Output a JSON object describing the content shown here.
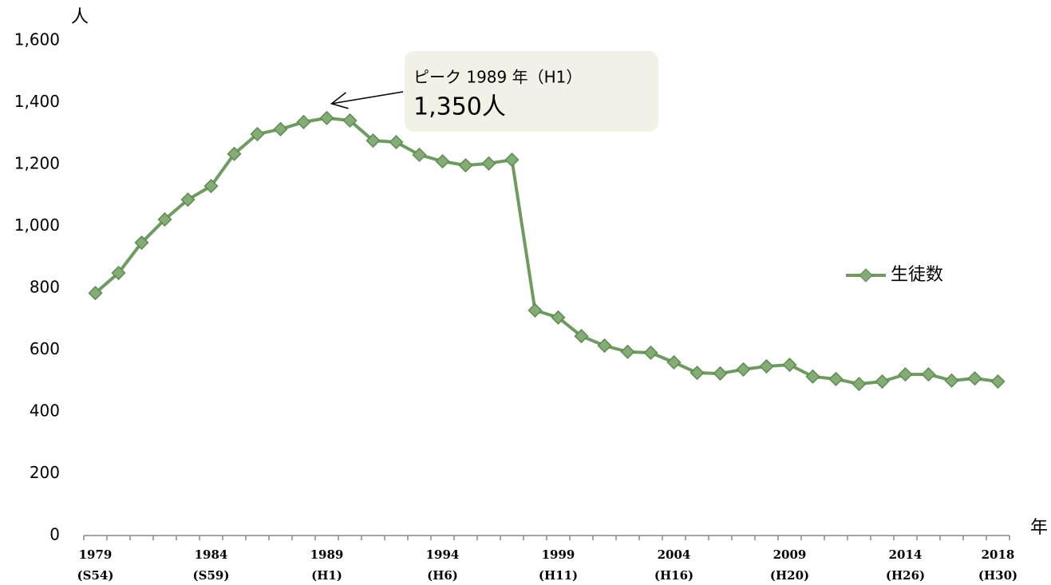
{
  "chart_data": {
    "type": "line",
    "y_unit": "人",
    "x_unit": "年",
    "categories": [
      "1979\n(S54)",
      null,
      null,
      null,
      null,
      "1984\n(S59)",
      null,
      null,
      null,
      null,
      "1989\n(H1)",
      null,
      null,
      null,
      null,
      "1994\n(H6)",
      null,
      null,
      null,
      null,
      "1999\n(H11)",
      null,
      null,
      null,
      null,
      "2004\n(H16)",
      null,
      null,
      null,
      null,
      "2009\n(H20)",
      null,
      null,
      null,
      null,
      "2014\n(H26)",
      null,
      null,
      null,
      "2018\n(H30)"
    ],
    "series": [
      {
        "name": "生徒数",
        "color": "#6f9a62",
        "values": [
          784,
          849,
          947,
          1022,
          1086,
          1130,
          1234,
          1298,
          1314,
          1337,
          1350,
          1342,
          1277,
          1272,
          1231,
          1210,
          1197,
          1203,
          1215,
          728,
          705,
          645,
          614,
          594,
          591,
          560,
          526,
          524,
          537,
          547,
          552,
          514,
          506,
          490,
          498,
          521,
          521,
          501,
          508,
          498
        ]
      }
    ],
    "ylim": [
      0,
      1600
    ],
    "yticks": [
      0,
      200,
      400,
      600,
      800,
      {
        "value": 1000,
        "label": "1,000"
      },
      {
        "value": 1200,
        "label": "1,200"
      },
      {
        "value": 1400,
        "label": "1,400"
      },
      {
        "value": 1600,
        "label": "1,600"
      }
    ],
    "grid": false,
    "legend": "right",
    "annotation": {
      "title": "ピーク 1989 年（H1）",
      "text": "1,350人",
      "point": 10
    }
  }
}
